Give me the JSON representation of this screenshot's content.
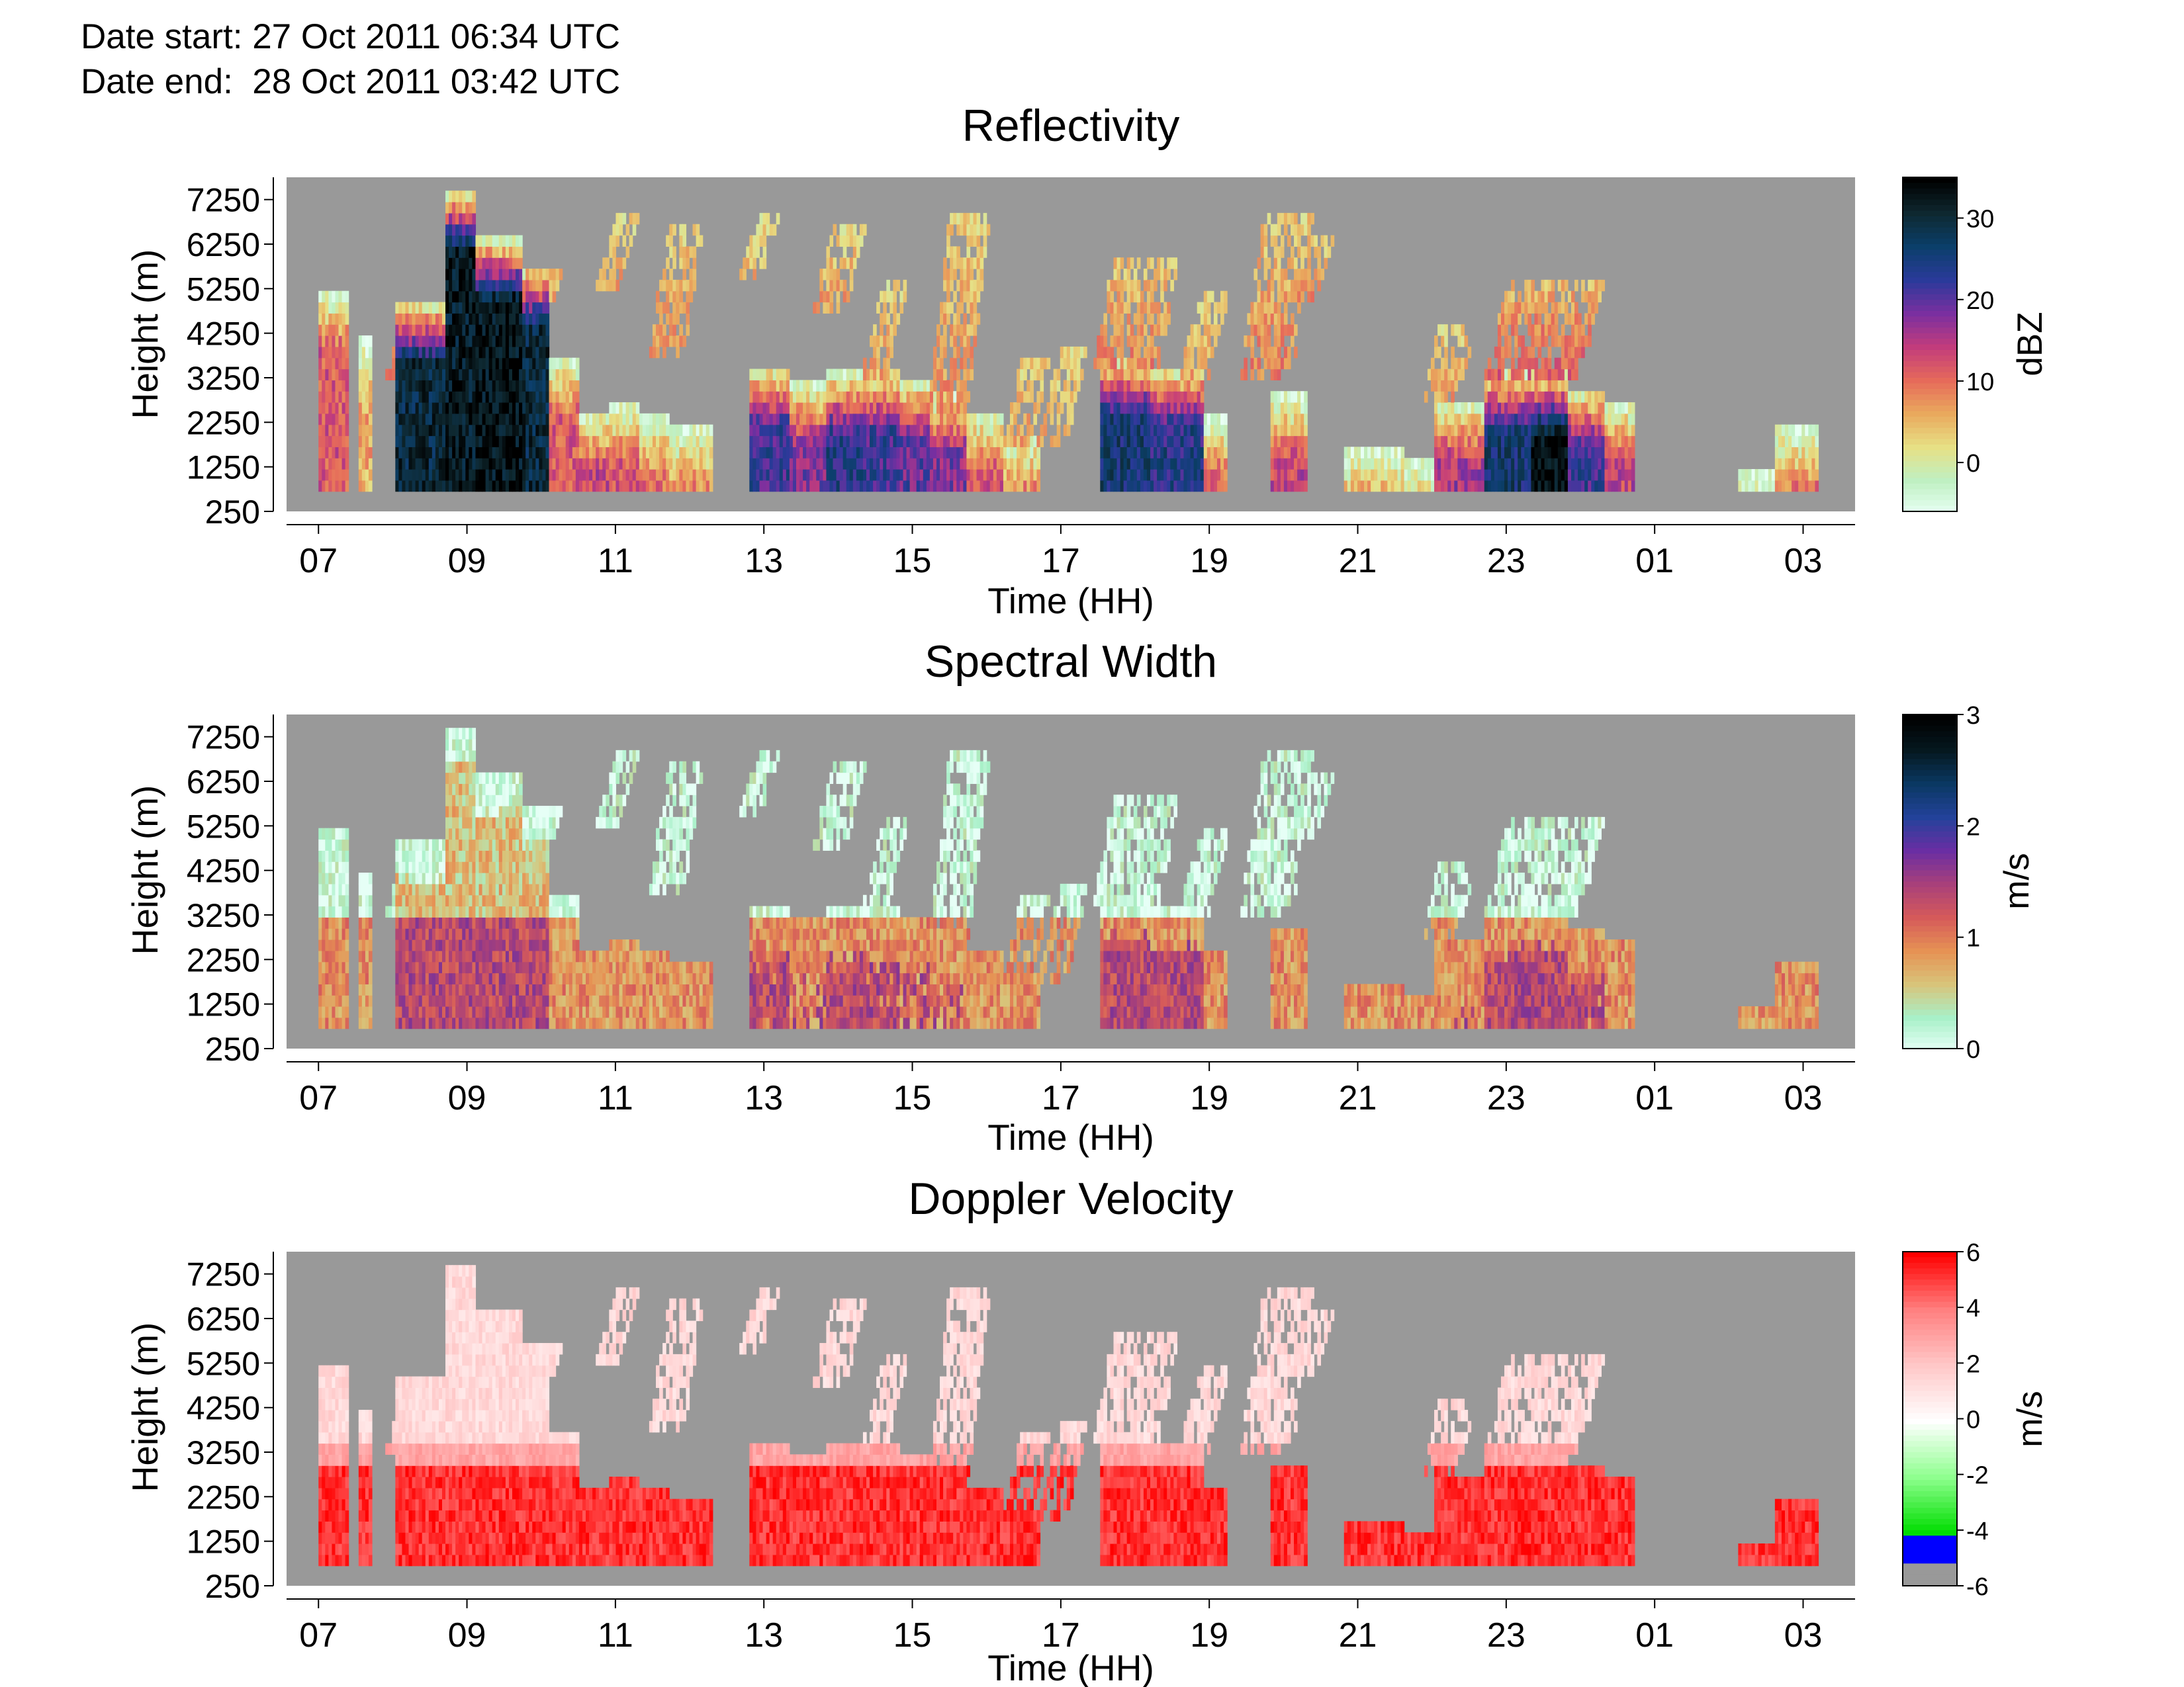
{
  "header": {
    "date_start": "Date start: 27 Oct 2011 06:34 UTC",
    "date_end": "Date end:  28 Oct 2011 03:42 UTC"
  },
  "colors": {
    "missing": "#999999",
    "reflectivity_scale": [
      "#e8fff4",
      "#bff0c2",
      "#e7e085",
      "#e9a95d",
      "#e66a5a",
      "#c23c7c",
      "#7a2fa0",
      "#2a3a9a",
      "#0b3f6a",
      "#0e2830",
      "#000000"
    ],
    "spectral_width_scale": [
      "#e6fff6",
      "#a8f0c8",
      "#d8c47a",
      "#e69254",
      "#d55a5a",
      "#a8407a",
      "#6a2ea3",
      "#23429a",
      "#0a3862",
      "#05181f",
      "#000000"
    ],
    "doppler_scale": [
      "#999999",
      "#0000ff",
      "#00dd00",
      "#8fff8f",
      "#ffffff",
      "#ffc8c8",
      "#ff8080",
      "#ff0000"
    ]
  },
  "chart_data": [
    {
      "type": "heatmap",
      "title": "Reflectivity",
      "xlabel": "Time (HH)",
      "ylabel": "Height (m)",
      "x_ticks": [
        "07",
        "09",
        "11",
        "13",
        "15",
        "17",
        "19",
        "21",
        "23",
        "01",
        "03"
      ],
      "x_tick_hours": [
        7,
        9,
        11,
        13,
        15,
        17,
        19,
        21,
        23,
        25,
        27
      ],
      "xlim": [
        6.57,
        27.7
      ],
      "y_ticks": [
        250,
        1250,
        2250,
        3250,
        4250,
        5250,
        6250,
        7250
      ],
      "ylim": [
        250,
        7750
      ],
      "colorbar": {
        "label": "dBZ",
        "ticks": [
          30,
          20,
          10,
          0
        ],
        "range": [
          -6,
          35
        ]
      },
      "cloud_cores": [
        {
          "t0": 7.0,
          "t1": 7.4,
          "top": 5100,
          "peak": 12
        },
        {
          "t0": 7.5,
          "t1": 7.7,
          "top": 4000,
          "peak": 6
        },
        {
          "t0": 8.0,
          "t1": 8.7,
          "top": 4800,
          "peak": 30
        },
        {
          "t0": 8.7,
          "t1": 9.1,
          "top": 7300,
          "peak": 32
        },
        {
          "t0": 9.1,
          "t1": 9.7,
          "top": 6200,
          "peak": 33
        },
        {
          "t0": 9.7,
          "t1": 10.1,
          "top": 5600,
          "peak": 30
        },
        {
          "t0": 10.1,
          "t1": 10.5,
          "top": 3600,
          "peak": 12
        },
        {
          "t0": 10.5,
          "t1": 10.9,
          "top": 2400,
          "peak": 14
        },
        {
          "t0": 10.9,
          "t1": 11.3,
          "top": 2600,
          "peak": 12
        },
        {
          "t0": 11.3,
          "t1": 11.7,
          "top": 2300,
          "peak": 10
        },
        {
          "t0": 11.7,
          "t1": 12.3,
          "top": 2100,
          "peak": 8
        },
        {
          "t0": 12.8,
          "t1": 13.3,
          "top": 3400,
          "peak": 22
        },
        {
          "t0": 13.3,
          "t1": 13.8,
          "top": 3000,
          "peak": 18
        },
        {
          "t0": 13.8,
          "t1": 14.3,
          "top": 3200,
          "peak": 24
        },
        {
          "t0": 14.3,
          "t1": 14.8,
          "top": 3300,
          "peak": 22
        },
        {
          "t0": 14.8,
          "t1": 15.2,
          "top": 3100,
          "peak": 20
        },
        {
          "t0": 15.2,
          "t1": 15.7,
          "top": 2800,
          "peak": 18
        },
        {
          "t0": 15.7,
          "t1": 16.2,
          "top": 2400,
          "peak": 12
        },
        {
          "t0": 16.2,
          "t1": 16.7,
          "top": 1900,
          "peak": 10
        },
        {
          "t0": 17.5,
          "t1": 18.2,
          "top": 3600,
          "peak": 26
        },
        {
          "t0": 18.2,
          "t1": 18.9,
          "top": 3400,
          "peak": 24
        },
        {
          "t0": 18.9,
          "t1": 19.2,
          "top": 2200,
          "peak": 12
        },
        {
          "t0": 19.8,
          "t1": 20.3,
          "top": 2700,
          "peak": 14
        },
        {
          "t0": 20.8,
          "t1": 21.6,
          "top": 1500,
          "peak": 10
        },
        {
          "t0": 21.6,
          "t1": 22.2,
          "top": 1300,
          "peak": 8
        },
        {
          "t0": 22.0,
          "t1": 22.7,
          "top": 2600,
          "peak": 16
        },
        {
          "t0": 22.7,
          "t1": 23.3,
          "top": 3300,
          "peak": 26
        },
        {
          "t0": 23.3,
          "t1": 23.8,
          "top": 3200,
          "peak": 34
        },
        {
          "t0": 23.8,
          "t1": 24.3,
          "top": 2900,
          "peak": 22
        },
        {
          "t0": 24.3,
          "t1": 24.7,
          "top": 2600,
          "peak": 14
        },
        {
          "t0": 26.1,
          "t1": 26.6,
          "top": 1100,
          "peak": 6
        },
        {
          "t0": 26.6,
          "t1": 27.2,
          "top": 2000,
          "peak": 10
        }
      ],
      "streaks": [
        {
          "t": 11.0,
          "w": 0.3,
          "bottom": 5100,
          "top": 6700,
          "val": 7
        },
        {
          "t": 11.8,
          "w": 0.5,
          "bottom": 3500,
          "top": 6600,
          "val": 8
        },
        {
          "t": 12.9,
          "w": 0.3,
          "bottom": 5300,
          "top": 6700,
          "val": 6
        },
        {
          "t": 14.0,
          "w": 0.45,
          "bottom": 4700,
          "top": 6500,
          "val": 7
        },
        {
          "t": 14.6,
          "w": 0.35,
          "bottom": 3000,
          "top": 5300,
          "val": 7
        },
        {
          "t": 15.6,
          "w": 0.55,
          "bottom": 2400,
          "top": 6700,
          "val": 8
        },
        {
          "t": 16.5,
          "w": 0.4,
          "bottom": 1500,
          "top": 3600,
          "val": 7
        },
        {
          "t": 17.0,
          "w": 0.4,
          "bottom": 1600,
          "top": 3800,
          "val": 6
        },
        {
          "t": 18.0,
          "w": 0.9,
          "bottom": 3300,
          "top": 5900,
          "val": 9
        },
        {
          "t": 18.9,
          "w": 0.4,
          "bottom": 3000,
          "top": 5000,
          "val": 7
        },
        {
          "t": 19.9,
          "w": 0.7,
          "bottom": 3200,
          "top": 6700,
          "val": 9
        },
        {
          "t": 20.4,
          "w": 0.3,
          "bottom": 4800,
          "top": 6400,
          "val": 8
        },
        {
          "t": 8.4,
          "w": 0.8,
          "bottom": 3100,
          "top": 4500,
          "val": 9
        },
        {
          "t": 9.6,
          "w": 1.0,
          "bottom": 3100,
          "top": 5500,
          "val": 12
        },
        {
          "t": 23.5,
          "w": 1.3,
          "bottom": 3200,
          "top": 5300,
          "val": 12
        },
        {
          "t": 22.2,
          "w": 0.5,
          "bottom": 2600,
          "top": 4400,
          "val": 7
        }
      ]
    },
    {
      "type": "heatmap",
      "title": "Spectral Width",
      "xlabel": "Time (HH)",
      "ylabel": "Height (m)",
      "x_ticks": [
        "07",
        "09",
        "11",
        "13",
        "15",
        "17",
        "19",
        "21",
        "23",
        "01",
        "03"
      ],
      "x_tick_hours": [
        7,
        9,
        11,
        13,
        15,
        17,
        19,
        21,
        23,
        25,
        27
      ],
      "xlim": [
        6.57,
        27.7
      ],
      "y_ticks": [
        250,
        1250,
        2250,
        3250,
        4250,
        5250,
        6250,
        7250
      ],
      "ylim": [
        250,
        7750
      ],
      "colorbar": {
        "label": "m/s",
        "ticks": [
          3,
          2,
          1,
          0
        ],
        "range": [
          0,
          3
        ]
      }
    },
    {
      "type": "heatmap",
      "title": "Doppler Velocity",
      "xlabel": "Time (HH)",
      "ylabel": "Height (m)",
      "x_ticks": [
        "07",
        "09",
        "11",
        "13",
        "15",
        "17",
        "19",
        "21",
        "23",
        "01",
        "03"
      ],
      "x_tick_hours": [
        7,
        9,
        11,
        13,
        15,
        17,
        19,
        21,
        23,
        25,
        27
      ],
      "xlim": [
        6.57,
        27.7
      ],
      "y_ticks": [
        250,
        1250,
        2250,
        3250,
        4250,
        5250,
        6250,
        7250
      ],
      "ylim": [
        250,
        7750
      ],
      "colorbar": {
        "label": "m/s",
        "ticks": [
          6,
          4,
          2,
          0,
          -2,
          -4,
          -6
        ],
        "range": [
          -6,
          6
        ]
      }
    }
  ]
}
